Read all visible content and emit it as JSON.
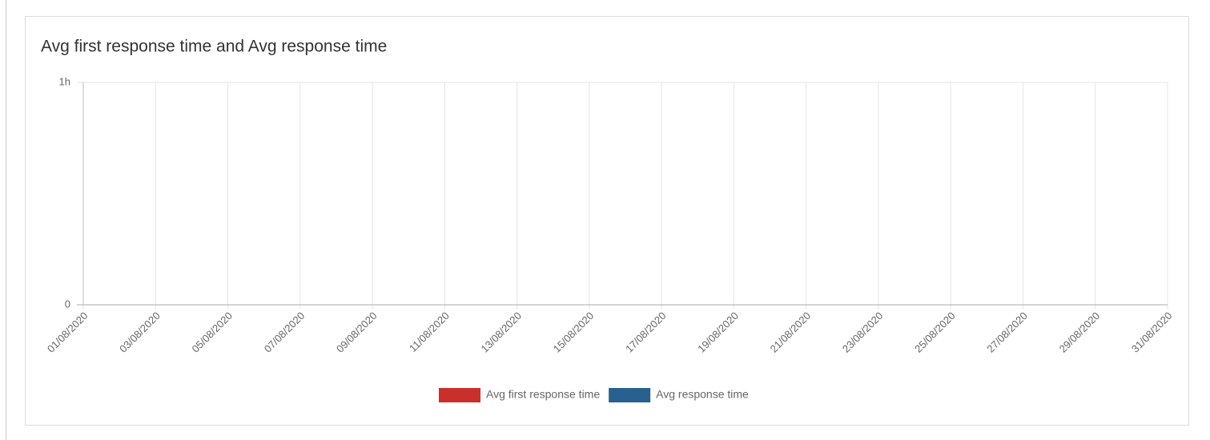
{
  "chart_data": {
    "type": "line",
    "title": "Avg first response time and Avg response time",
    "categories": [
      "01/08/2020",
      "03/08/2020",
      "05/08/2020",
      "07/08/2020",
      "09/08/2020",
      "11/08/2020",
      "13/08/2020",
      "15/08/2020",
      "17/08/2020",
      "19/08/2020",
      "21/08/2020",
      "23/08/2020",
      "25/08/2020",
      "27/08/2020",
      "29/08/2020",
      "31/08/2020"
    ],
    "series": [
      {
        "name": "Avg first response time",
        "color": "#c9302c",
        "values": [
          null,
          null,
          null,
          null,
          null,
          null,
          null,
          null,
          null,
          null,
          null,
          null,
          null,
          null,
          null,
          null
        ]
      },
      {
        "name": "Avg response time",
        "color": "#28608f",
        "values": [
          null,
          null,
          null,
          null,
          null,
          null,
          null,
          null,
          null,
          null,
          null,
          null,
          null,
          null,
          null,
          null
        ]
      }
    ],
    "ylim": [
      0,
      1
    ],
    "yticks": [
      0,
      {
        "value": 1,
        "label": "1h"
      }
    ],
    "grid": true,
    "legend": "bottom"
  }
}
